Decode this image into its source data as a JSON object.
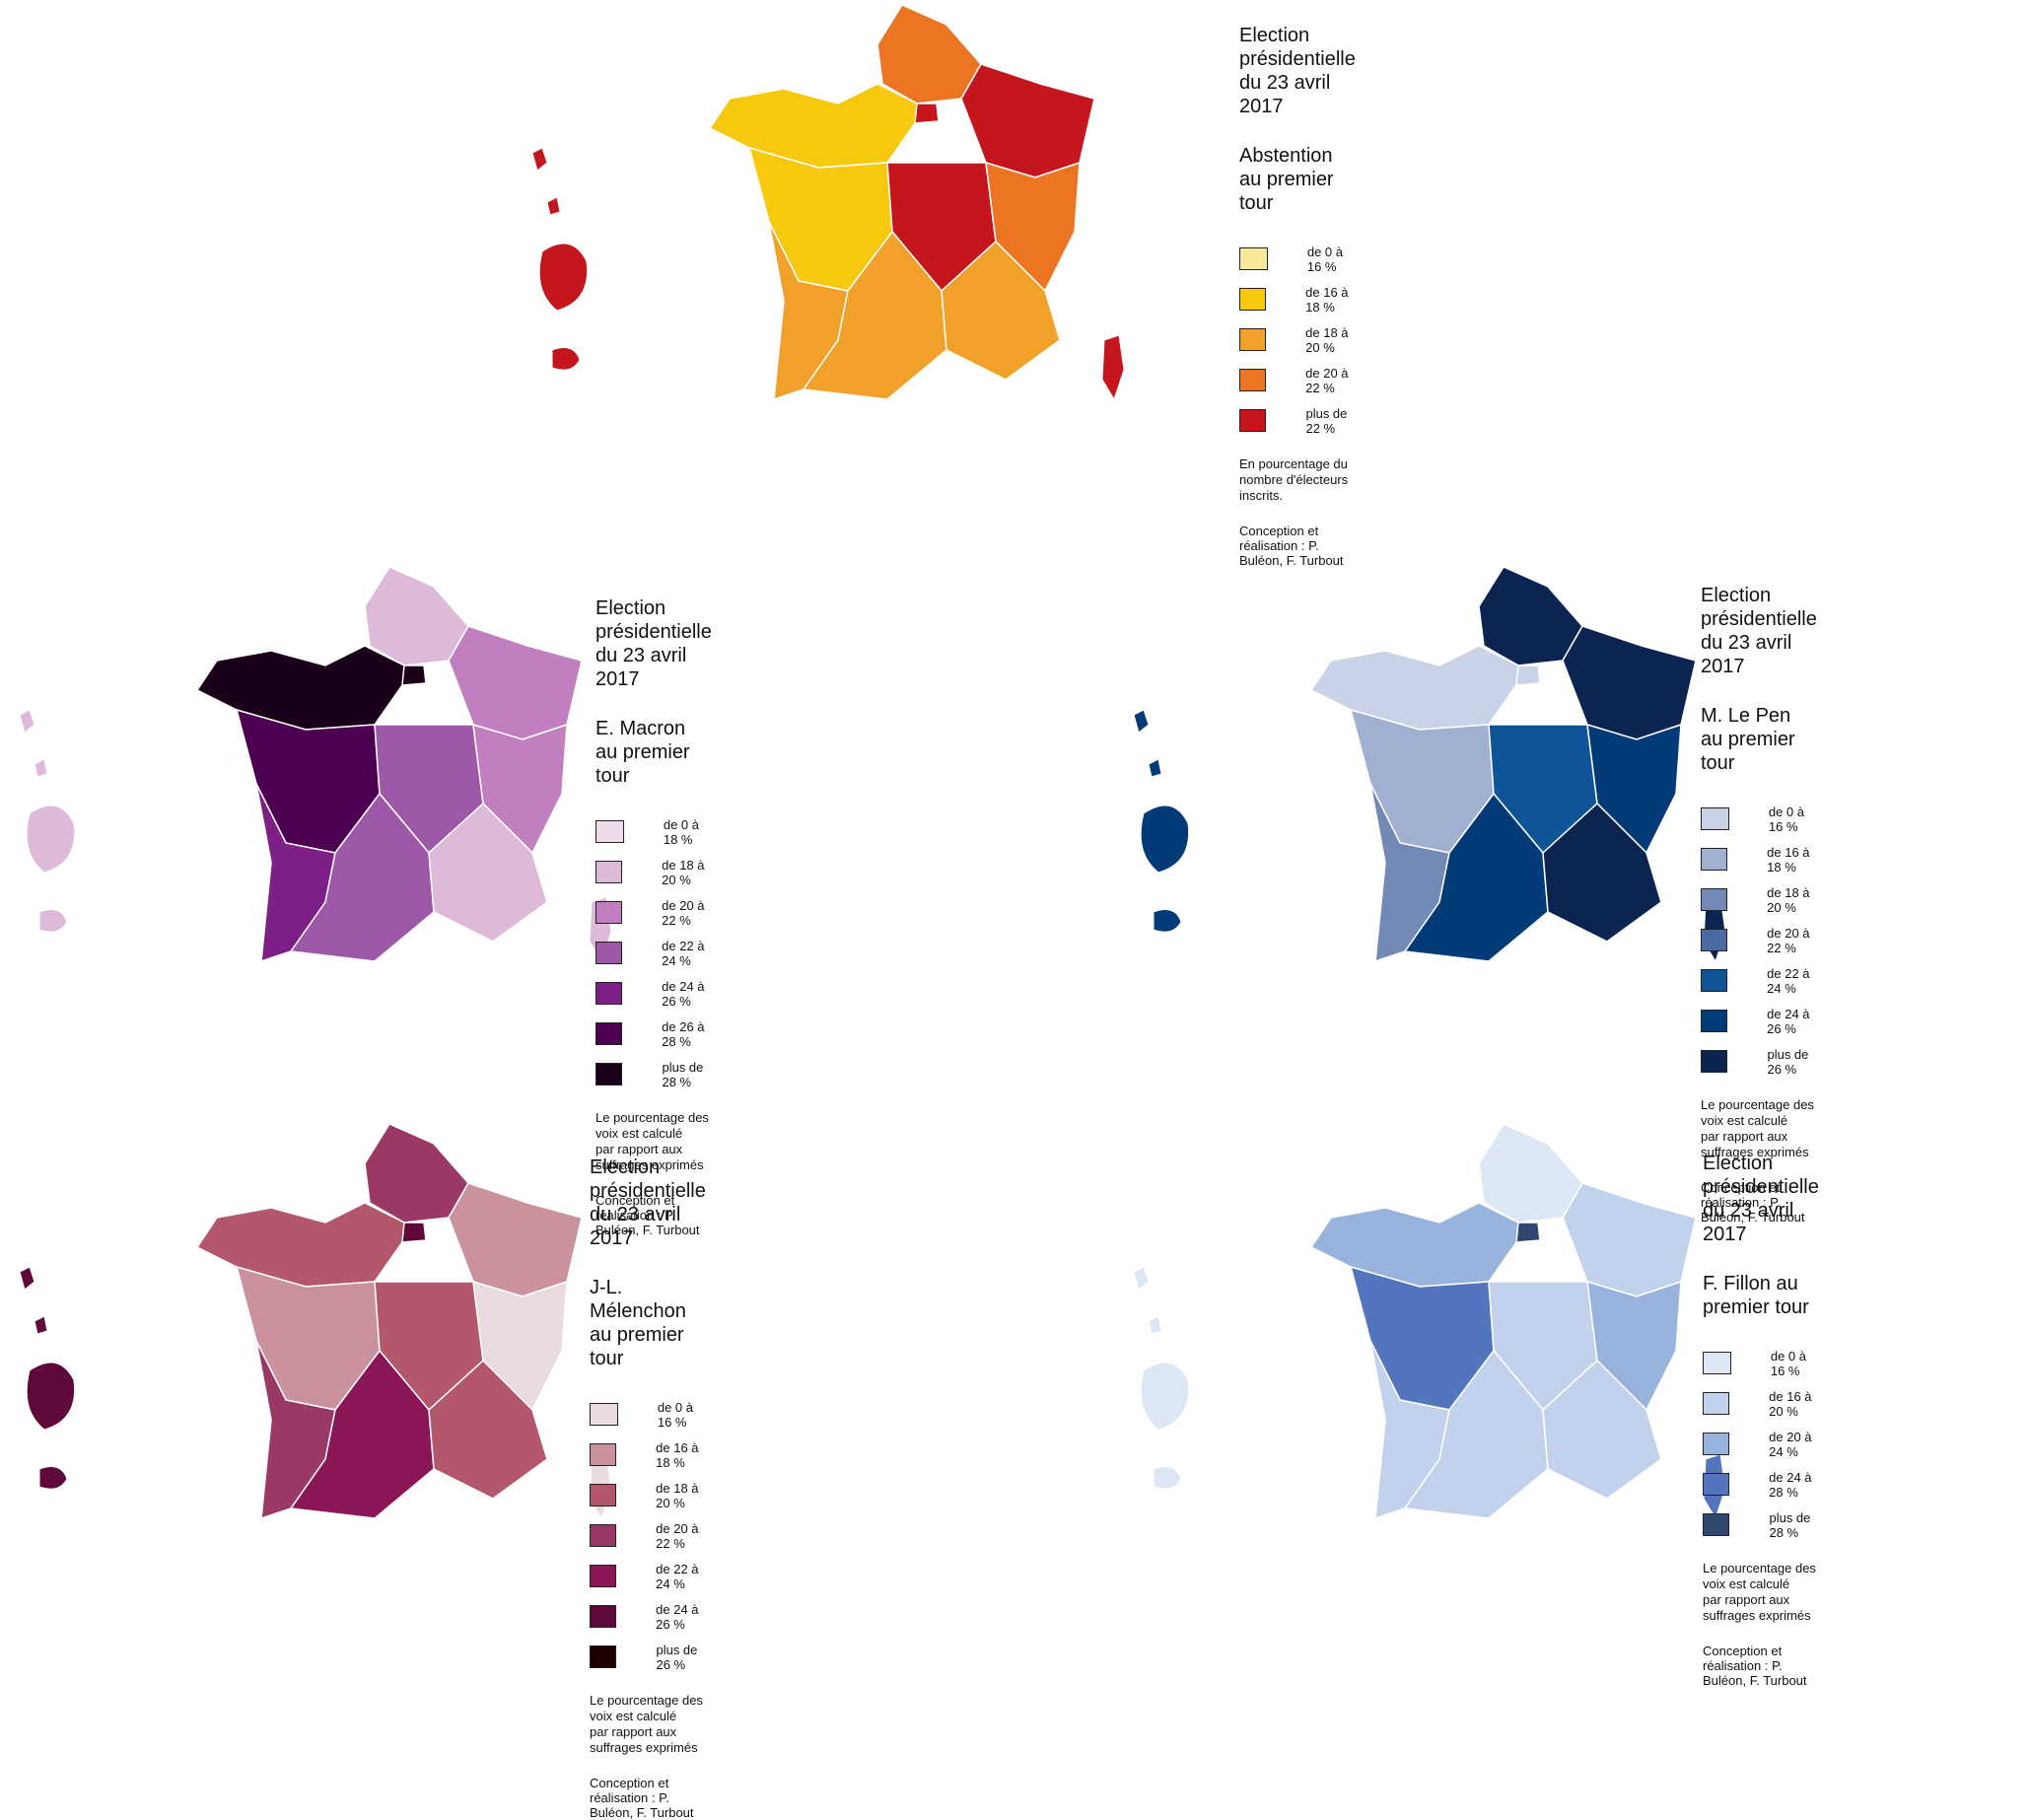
{
  "panels": [
    {
      "id": "abstention",
      "title_line1": "Election présidentielle",
      "title_line2": "du 23 avril 2017",
      "subtitle": "Abstention au premier tour",
      "legend": [
        {
          "label": "de 0 à 16 %",
          "color": "#f7e89a"
        },
        {
          "label": "de 16 à 18 %",
          "color": "#f6c90e"
        },
        {
          "label": "de 18 à 20 %",
          "color": "#f1a02a"
        },
        {
          "label": "de 20 à 22 %",
          "color": "#ec7524"
        },
        {
          "label": "plus de 22 %",
          "color": "#c4161c"
        }
      ],
      "note": "En pourcentage du nombre d'électeurs inscrits.",
      "note2": "",
      "credit": "Conception et réalisation : P. Buléon, F. Turbout",
      "regions": {
        "nw": 1,
        "w": 1,
        "sw": 2,
        "n": 3,
        "ne": 4,
        "c": 4,
        "paris": 4,
        "e": 3,
        "se": 2,
        "s": 2,
        "overseas": 4,
        "corsica": 4
      }
    },
    {
      "id": "macron",
      "title_line1": "Election présidentielle",
      "title_line2": "du 23 avril 2017",
      "subtitle": "E. Macron au premier tour",
      "legend": [
        {
          "label": "de 0 à  18 %",
          "color": "#eddbe9"
        },
        {
          "label": "de 18 à 20 %",
          "color": "#ddbbd8"
        },
        {
          "label": "de 20 à 22 %",
          "color": "#c17fc0"
        },
        {
          "label": "de 22 à 24 %",
          "color": "#9e58a8"
        },
        {
          "label": "de 24 à 26 %",
          "color": "#7d1f87"
        },
        {
          "label": "de 26 à 28 %",
          "color": "#4d0051"
        },
        {
          "label": "plus de 28 %",
          "color": "#1b0019"
        }
      ],
      "note": "Le pourcentage des voix est calculé",
      "note2": "par rapport aux suffrages exprimés",
      "credit": "Conception et réalisation : P. Buléon, F. Turbout",
      "regions": {
        "nw": 6,
        "w": 5,
        "sw": 4,
        "n": 1,
        "ne": 2,
        "c": 3,
        "paris": 6,
        "e": 2,
        "se": 1,
        "s": 3,
        "overseas": 1,
        "corsica": 1
      }
    },
    {
      "id": "lepen",
      "title_line1": "Election présidentielle",
      "title_line2": "du 23 avril 2017",
      "subtitle": "M. Le Pen au premier tour",
      "legend": [
        {
          "label": "de 0 à 16 %",
          "color": "#c8d3e8"
        },
        {
          "label": "de 16 à 18 %",
          "color": "#a1b0d0"
        },
        {
          "label": "de 18 à 20 %",
          "color": "#7289b6"
        },
        {
          "label": "de 20 à 22 %",
          "color": "#4a6aa2"
        },
        {
          "label": "de 22 à 24 %",
          "color": "#0f5496"
        },
        {
          "label": "de 24 à 26 %",
          "color": "#033a78"
        },
        {
          "label": "plus de 26 %",
          "color": "#0c2550"
        }
      ],
      "note": "Le pourcentage des voix est calculé",
      "note2": "par rapport aux suffrages exprimés",
      "credit": "Conception et réalisation : P. Buléon, F. Turbout",
      "regions": {
        "nw": 0,
        "w": 1,
        "sw": 2,
        "n": 6,
        "ne": 6,
        "c": 4,
        "paris": 0,
        "e": 5,
        "se": 6,
        "s": 5,
        "overseas": 5,
        "corsica": 6
      }
    },
    {
      "id": "melenchon",
      "title_line1": "Election présidentielle",
      "title_line2": "du 23 avril 2017",
      "subtitle": "J-L. Mélenchon au premier tour",
      "legend": [
        {
          "label": "de 0 à 16 %",
          "color": "#eadbe0"
        },
        {
          "label": "de 16 à 18 %",
          "color": "#c9929c"
        },
        {
          "label": "de 18 à 20 %",
          "color": "#b3586c"
        },
        {
          "label": "de 20 à 22 %",
          "color": "#9b3966"
        },
        {
          "label": "de 22 à 24 %",
          "color": "#8a1656"
        },
        {
          "label": "de 24 à 26 %",
          "color": "#5e0939"
        },
        {
          "label": "plus de 26 %",
          "color": "#1e0000"
        }
      ],
      "note": "Le pourcentage des voix est calculé",
      "note2": "par rapport aux suffrages exprimés",
      "credit": "Conception et réalisation : P. Buléon, F. Turbout",
      "regions": {
        "nw": 2,
        "w": 1,
        "sw": 3,
        "n": 3,
        "ne": 1,
        "c": 2,
        "paris": 5,
        "e": 0,
        "se": 2,
        "s": 4,
        "overseas": 5,
        "corsica": 0
      }
    },
    {
      "id": "fillon",
      "title_line1": "Election présidentielle",
      "title_line2": "du 23 avril 2017",
      "subtitle": "F. Fillon au premier tour",
      "legend": [
        {
          "label": "de 0 à 16 %",
          "color": "#dde6f5"
        },
        {
          "label": "de 16 à 20 %",
          "color": "#c3d2ec"
        },
        {
          "label": "de 20 à 24 %",
          "color": "#98b4dd"
        },
        {
          "label": "de 24 à 28 %",
          "color": "#5275bd"
        },
        {
          "label": "plus de 28 %",
          "color": "#30466f"
        }
      ],
      "note": "Le pourcentage des voix est calculé",
      "note2": "par rapport aux suffrages exprimés",
      "credit": "Conception et réalisation : P. Buléon, F. Turbout",
      "regions": {
        "nw": 2,
        "w": 3,
        "sw": 1,
        "n": 0,
        "ne": 1,
        "c": 1,
        "paris": 4,
        "e": 2,
        "se": 1,
        "s": 1,
        "overseas": 0,
        "corsica": 3
      }
    }
  ]
}
